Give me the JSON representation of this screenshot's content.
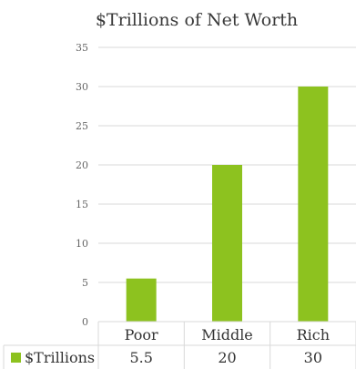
{
  "chart_data": {
    "type": "bar",
    "title": "$Trillions of Net Worth",
    "categories": [
      "Poor",
      "Middle",
      "Rich"
    ],
    "series": [
      {
        "name": "$Trillions",
        "values": [
          5.5,
          20,
          30
        ],
        "color": "#8dc21f"
      }
    ],
    "yticks": [
      "0",
      "5",
      "10",
      "15",
      "20",
      "25",
      "30",
      "35"
    ],
    "ylim": [
      0,
      35
    ],
    "grid": true,
    "gridline_color": "#d9d9d9",
    "table_values": [
      "5.5",
      "20",
      "30"
    ],
    "legend": "data-table"
  }
}
